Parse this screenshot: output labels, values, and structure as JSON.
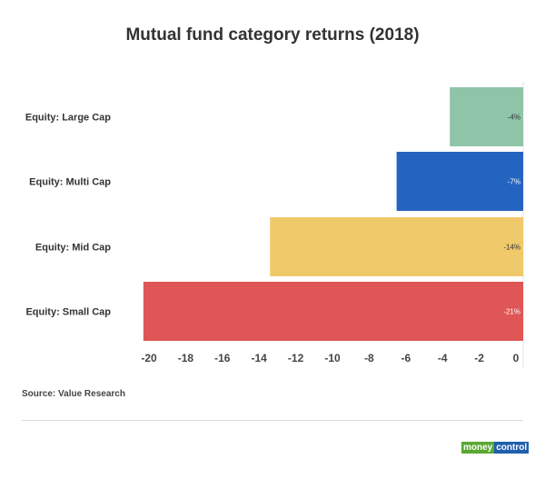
{
  "chart_data": {
    "type": "bar",
    "orientation": "horizontal",
    "title": "Mutual fund category returns (2018)",
    "categories": [
      "Equity: Large Cap",
      "Equity: Multi Cap",
      "Equity: Mid Cap",
      "Equity: Small Cap"
    ],
    "values": [
      -4.0,
      -6.9,
      -13.8,
      -20.7
    ],
    "data_labels": [
      "-4%",
      "-7%",
      "-14%",
      "-21%"
    ],
    "colors": [
      "#8fc4a8",
      "#2563c0",
      "#f0ca6a",
      "#e05555"
    ],
    "label_colors": [
      "#333333",
      "#ffffff",
      "#333333",
      "#ffffff"
    ],
    "xticks": [
      "-20",
      "-18",
      "-16",
      "-14",
      "-12",
      "-10",
      "-8",
      "-6",
      "-4",
      "-2",
      "0"
    ],
    "xlim": [
      -21,
      0
    ],
    "xlabel": "",
    "ylabel": "",
    "grid": false
  },
  "source": "Source: Value Research",
  "logo": {
    "part1": "money",
    "part2": "control"
  }
}
